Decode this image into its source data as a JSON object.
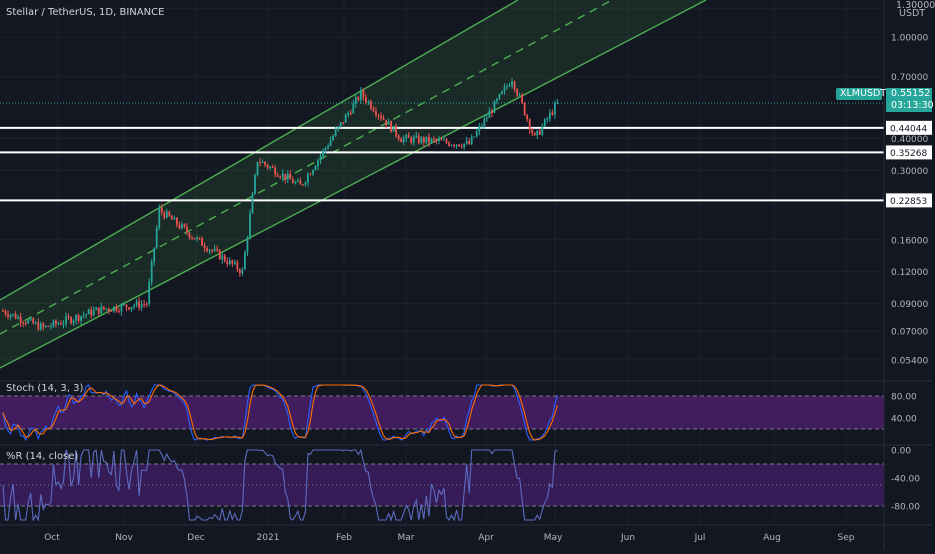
{
  "header": {
    "symbol_title": "Stellar / TetherUS, 1D, BINANCE"
  },
  "price_axis": {
    "currency": "USDT",
    "ticks": [
      "1.30000",
      "1.00000",
      "0.70000",
      "0.40000",
      "0.30000",
      "0.16000",
      "0.12000",
      "0.09000",
      "0.07000",
      "0.05400"
    ]
  },
  "symbol_badge": {
    "ticker": "XLMUSDT",
    "price": "0.55152",
    "countdown": "03:13:30",
    "color": "#26a69a"
  },
  "horizontal_levels": [
    {
      "value": 0.44044,
      "label": "0.44044"
    },
    {
      "value": 0.35268,
      "label": "0.35268"
    },
    {
      "value": 0.22853,
      "label": "0.22853"
    }
  ],
  "stoch_pane": {
    "title": "Stoch (14, 3, 3)",
    "ticks": [
      "80.00",
      "40.00"
    ],
    "upper_band": 80,
    "lower_band": 20,
    "k_color": "#2962ff",
    "d_color": "#ff6d00",
    "band_fill": "#4a1f6b"
  },
  "wr_pane": {
    "title": "%R (14, close)",
    "ticks": [
      "0.00",
      "-40.00",
      "-80.00"
    ],
    "upper_band": -20,
    "lower_band": -80,
    "line_color": "#5c6bc0",
    "band_fill": "#3a1d5c"
  },
  "time_axis": {
    "labels": [
      "Oct",
      "Nov",
      "Dec",
      "2021",
      "Feb",
      "Mar",
      "Apr",
      "May",
      "Jun",
      "Jul",
      "Aug",
      "Sep"
    ]
  },
  "colors": {
    "background": "#131722",
    "up": "#26a69a",
    "down": "#ef5350",
    "channel": "#4caf50"
  },
  "chart_data": {
    "type": "candlestick",
    "symbol": "XLMUSDT",
    "interval": "1D",
    "scale": "log",
    "ylim": [
      0.045,
      1.4
    ],
    "price_points": [
      {
        "x": "Sep 24",
        "y": 0.084
      },
      {
        "x": "Oct 10",
        "y": 0.072
      },
      {
        "x": "Nov 1",
        "y": 0.085
      },
      {
        "x": "Nov 20",
        "y": 0.09
      },
      {
        "x": "Nov 25",
        "y": 0.21
      },
      {
        "x": "Dec 10",
        "y": 0.16
      },
      {
        "x": "Dec 28",
        "y": 0.12
      },
      {
        "x": "Jan 3",
        "y": 0.33
      },
      {
        "x": "Jan 20",
        "y": 0.26
      },
      {
        "x": "Feb 13",
        "y": 0.6
      },
      {
        "x": "Mar 1",
        "y": 0.4
      },
      {
        "x": "Mar 28",
        "y": 0.38
      },
      {
        "x": "Apr 14",
        "y": 0.69
      },
      {
        "x": "Apr 23",
        "y": 0.4
      },
      {
        "x": "May 2",
        "y": 0.551
      }
    ],
    "last_price": 0.55152
  }
}
